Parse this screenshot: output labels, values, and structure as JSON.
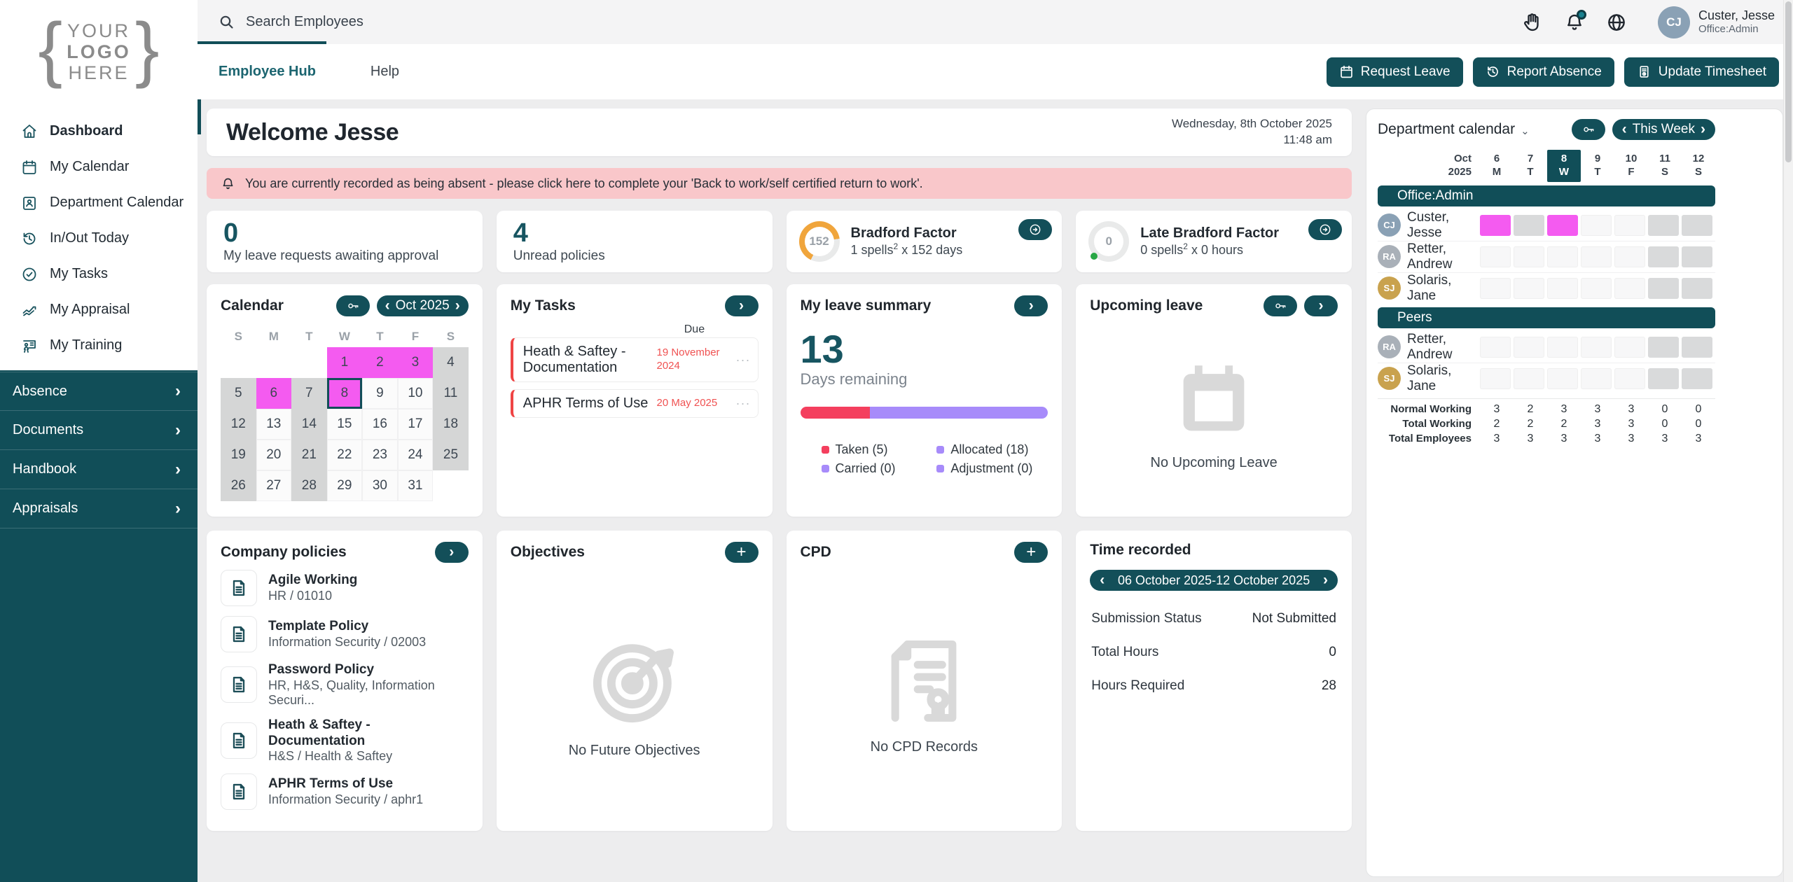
{
  "brand": {
    "logo_lines": [
      "YOUR",
      "LOGO",
      "HERE"
    ]
  },
  "sidebar": {
    "primary": [
      {
        "label": "Dashboard",
        "icon": "home",
        "active": true
      },
      {
        "label": "My Calendar",
        "icon": "calendar"
      },
      {
        "label": "Department Calendar",
        "icon": "id-card"
      },
      {
        "label": "In/Out Today",
        "icon": "clock-history"
      },
      {
        "label": "My Tasks",
        "icon": "check-circle"
      },
      {
        "label": "My Appraisal",
        "icon": "trend-chart"
      },
      {
        "label": "My Training",
        "icon": "presentation"
      }
    ],
    "secondary": [
      {
        "label": "Absence"
      },
      {
        "label": "Documents"
      },
      {
        "label": "Handbook"
      },
      {
        "label": "Appraisals"
      }
    ]
  },
  "topbar": {
    "search_placeholder": "Search Employees",
    "user": {
      "name": "Custer, Jesse",
      "role": "Office:Admin",
      "initials": "CJ"
    }
  },
  "header": {
    "tabs": [
      {
        "label": "Employee Hub",
        "active": true
      },
      {
        "label": "Help"
      }
    ],
    "actions": [
      {
        "label": "Request Leave",
        "icon": "calendar"
      },
      {
        "label": "Report Absence",
        "icon": "clock-history"
      },
      {
        "label": "Update Timesheet",
        "icon": "timesheet"
      }
    ]
  },
  "welcome": {
    "title": "Welcome Jesse",
    "date_line1": "Wednesday, 8th October 2025",
    "date_line2": "11:48 am"
  },
  "alert": {
    "text": "You are currently recorded as being absent - please click here to complete your 'Back to work/self certified return to work'."
  },
  "stats": {
    "leave_requests": {
      "value": "0",
      "label": "My leave requests awaiting approval"
    },
    "unread_policies": {
      "value": "4",
      "label": "Unread policies"
    },
    "bradford": {
      "value": "152",
      "title": "Bradford Factor",
      "detail_prefix": "1 spells",
      "detail_sup": "2",
      "detail_suffix": " x 152 days"
    },
    "late_bradford": {
      "value": "0",
      "title": "Late Bradford Factor",
      "detail_prefix": "0 spells",
      "detail_sup": "2",
      "detail_suffix": " x 0 hours"
    }
  },
  "calendar": {
    "title": "Calendar",
    "month_label": "Oct 2025",
    "prev": "‹",
    "next": "›",
    "day_headers": [
      "S",
      "M",
      "T",
      "W",
      "T",
      "F",
      "S"
    ],
    "weeks": [
      [
        {
          "d": "",
          "s": "blank"
        },
        {
          "d": "",
          "s": "blank"
        },
        {
          "d": "",
          "s": "blank"
        },
        {
          "d": "1",
          "s": "absence"
        },
        {
          "d": "2",
          "s": "absence"
        },
        {
          "d": "3",
          "s": "absence"
        },
        {
          "d": "4",
          "s": "off"
        }
      ],
      [
        {
          "d": "5",
          "s": "off"
        },
        {
          "d": "6",
          "s": "absence"
        },
        {
          "d": "7",
          "s": "off"
        },
        {
          "d": "8",
          "s": "today"
        },
        {
          "d": "9",
          "s": "normal"
        },
        {
          "d": "10",
          "s": "normal"
        },
        {
          "d": "11",
          "s": "off"
        }
      ],
      [
        {
          "d": "12",
          "s": "off"
        },
        {
          "d": "13",
          "s": "normal"
        },
        {
          "d": "14",
          "s": "off"
        },
        {
          "d": "15",
          "s": "normal"
        },
        {
          "d": "16",
          "s": "normal"
        },
        {
          "d": "17",
          "s": "normal"
        },
        {
          "d": "18",
          "s": "off"
        }
      ],
      [
        {
          "d": "19",
          "s": "off"
        },
        {
          "d": "20",
          "s": "normal"
        },
        {
          "d": "21",
          "s": "off"
        },
        {
          "d": "22",
          "s": "normal"
        },
        {
          "d": "23",
          "s": "normal"
        },
        {
          "d": "24",
          "s": "normal"
        },
        {
          "d": "25",
          "s": "off"
        }
      ],
      [
        {
          "d": "26",
          "s": "off"
        },
        {
          "d": "27",
          "s": "normal"
        },
        {
          "d": "28",
          "s": "off"
        },
        {
          "d": "29",
          "s": "normal"
        },
        {
          "d": "30",
          "s": "normal"
        },
        {
          "d": "31",
          "s": "normal"
        },
        {
          "d": "",
          "s": "blank"
        }
      ]
    ]
  },
  "tasks": {
    "title": "My Tasks",
    "due_header": "Due",
    "items": [
      {
        "title": "Heath & Saftey - Documentation",
        "due": "19 November 2024"
      },
      {
        "title": "APHR Terms of Use",
        "due": "20 May 2025"
      }
    ]
  },
  "leave_summary": {
    "title": "My leave summary",
    "remaining_value": "13",
    "remaining_label": "Days remaining",
    "bar": [
      {
        "name": "taken",
        "color": "#f43f5e",
        "pct": 28
      },
      {
        "name": "remaining",
        "color": "#a78bfa",
        "pct": 72
      }
    ],
    "legend": [
      {
        "label": "Taken (5)",
        "color": "#f43f5e"
      },
      {
        "label": "Allocated (18)",
        "color": "#a78bfa"
      },
      {
        "label": "Carried (0)",
        "color": "#a78bfa"
      },
      {
        "label": "Adjustment (0)",
        "color": "#a78bfa"
      }
    ]
  },
  "upcoming_leave": {
    "title": "Upcoming leave",
    "empty_text": "No Upcoming Leave"
  },
  "policies": {
    "title": "Company policies",
    "items": [
      {
        "title": "Agile Working",
        "subtitle": "HR / 01010"
      },
      {
        "title": "Template Policy",
        "subtitle": "Information Security / 02003"
      },
      {
        "title": "Password Policy",
        "subtitle": "HR, H&S, Quality, Information Securi..."
      },
      {
        "title": "Heath & Saftey - Documentation",
        "subtitle": "H&S / Health & Saftey"
      },
      {
        "title": "APHR Terms of Use",
        "subtitle": "Information Security / aphr1"
      }
    ]
  },
  "objectives": {
    "title": "Objectives",
    "empty_text": "No Future Objectives"
  },
  "cpd": {
    "title": "CPD",
    "empty_text": "No CPD Records"
  },
  "time_recorded": {
    "title": "Time recorded",
    "period": "06 October 2025-12 October 2025",
    "prev": "‹",
    "next": "›",
    "rows": [
      {
        "label": "Submission Status",
        "value": "Not Submitted"
      },
      {
        "label": "Total Hours",
        "value": "0"
      },
      {
        "label": "Hours Required",
        "value": "28"
      }
    ]
  },
  "dept_calendar": {
    "title": "Department calendar",
    "range_label": "This Week",
    "prev": "‹",
    "next": "›",
    "month_line1": "Oct",
    "month_line2": "2025",
    "days": [
      {
        "num": "6",
        "dow": "M",
        "today": false
      },
      {
        "num": "7",
        "dow": "T",
        "today": false
      },
      {
        "num": "8",
        "dow": "W",
        "today": true
      },
      {
        "num": "9",
        "dow": "T",
        "today": false
      },
      {
        "num": "10",
        "dow": "F",
        "today": false
      },
      {
        "num": "11",
        "dow": "S",
        "today": false
      },
      {
        "num": "12",
        "dow": "S",
        "today": false
      }
    ],
    "groups": [
      {
        "name": "Office:Admin",
        "members": [
          {
            "name": "Custer, Jesse",
            "initials": "CJ",
            "avatar_color": "#8aa1b5",
            "cells": [
              "absence",
              "off",
              "absence",
              "normal",
              "normal",
              "off",
              "off"
            ]
          },
          {
            "name": "Retter, Andrew",
            "initials": "RA",
            "avatar_color": "#a9b0b8",
            "cells": [
              "normal",
              "normal",
              "normal",
              "normal",
              "normal",
              "off",
              "off"
            ]
          },
          {
            "name": "Solaris, Jane",
            "initials": "SJ",
            "avatar_color": "#c9a24e",
            "cells": [
              "normal",
              "normal",
              "normal",
              "normal",
              "normal",
              "off",
              "off"
            ]
          }
        ]
      },
      {
        "name": "Peers",
        "members": [
          {
            "name": "Retter, Andrew",
            "initials": "RA",
            "avatar_color": "#a9b0b8",
            "cells": [
              "normal",
              "normal",
              "normal",
              "normal",
              "normal",
              "off",
              "off"
            ]
          },
          {
            "name": "Solaris, Jane",
            "initials": "SJ",
            "avatar_color": "#c9a24e",
            "cells": [
              "normal",
              "normal",
              "normal",
              "normal",
              "normal",
              "off",
              "off"
            ]
          }
        ]
      }
    ],
    "summary": [
      {
        "label": "Normal Working",
        "values": [
          "3",
          "2",
          "3",
          "3",
          "3",
          "0",
          "0"
        ]
      },
      {
        "label": "Total Working",
        "values": [
          "2",
          "2",
          "2",
          "3",
          "3",
          "0",
          "0"
        ]
      },
      {
        "label": "Total Employees",
        "values": [
          "3",
          "3",
          "3",
          "3",
          "3",
          "3",
          "3"
        ]
      }
    ]
  },
  "colors": {
    "accent_teal": "#114e58",
    "magenta_absence": "#f45bf0",
    "alert_pink": "#f9c7ca",
    "taken_red": "#f43f5e",
    "allocated_violet": "#a78bfa",
    "gauge_orange": "#f0a53c",
    "due_red": "#f05252",
    "late_dot_green": "#28a745",
    "nonworking_gray": "#d5d6d6"
  }
}
